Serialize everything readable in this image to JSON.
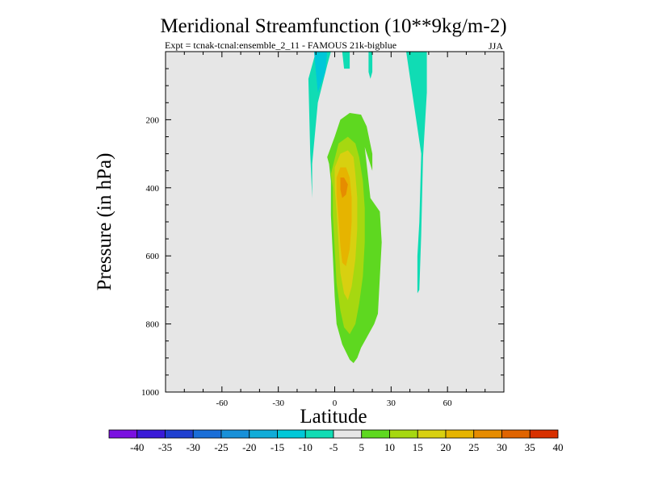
{
  "chart_data": {
    "type": "heatmap",
    "title": "Meridional Streamfunction (10**9kg/m-2)",
    "subtitle_left": "Expt = tcnak-tcnal:ensemble_2_11 - FAMOUS 21k-bigblue",
    "season": "JJA",
    "xlabel": "Latitude",
    "ylabel": "Pressure (in hPa)",
    "xlim": [
      -90,
      90
    ],
    "ylim": [
      1000,
      0
    ],
    "x_ticks": [
      -60,
      -30,
      0,
      30,
      60
    ],
    "x_tick_labels": [
      "-60",
      "-30",
      "0",
      "30",
      "60"
    ],
    "y_ticks": [
      200,
      400,
      600,
      800,
      1000
    ],
    "y_tick_labels": [
      "200",
      "400",
      "600",
      "800",
      "1000"
    ],
    "background_color": "#e6e6e6",
    "colorbar": {
      "labels": [
        "-40",
        "-35",
        "-30",
        "-25",
        "-20",
        "-15",
        "-10",
        "-5",
        "5",
        "10",
        "15",
        "20",
        "25",
        "30",
        "35",
        "40"
      ],
      "colors": [
        "#7a10e0",
        "#3a1ad8",
        "#2040d0",
        "#1a6ed8",
        "#1890d8",
        "#10acd8",
        "#00c8d8",
        "#10dcb4",
        "#e6e6e6",
        "#5ed820",
        "#a6d810",
        "#d8d010",
        "#e6b400",
        "#e68c00",
        "#e06400",
        "#d83000"
      ]
    },
    "contour_regions": [
      {
        "level": "-10",
        "color": "#10dcb4",
        "lat": [
          -10,
          -2,
          -4,
          -9,
          -12,
          -12,
          -13,
          -14
        ],
        "p": [
          0,
          0,
          40,
          150,
          330,
          430,
          300,
          80
        ]
      },
      {
        "level": "-15",
        "color": "#00c8d8",
        "lat": [
          -11,
          -4,
          -5,
          -9
        ],
        "p": [
          0,
          0,
          60,
          120
        ]
      },
      {
        "level": "-10",
        "color": "#10dcb4",
        "lat": [
          -2,
          3,
          1
        ],
        "p": [
          330,
          330,
          410
        ]
      },
      {
        "level": "-10",
        "color": "#10dcb4",
        "lat": [
          4,
          8,
          8,
          5
        ],
        "p": [
          0,
          0,
          50,
          50
        ]
      },
      {
        "level": "-10",
        "color": "#10dcb4",
        "lat": [
          18,
          20,
          20,
          19,
          18
        ],
        "p": [
          0,
          0,
          60,
          80,
          60
        ]
      },
      {
        "level": "-10",
        "color": "#10dcb4",
        "lat": [
          38,
          49,
          49,
          47,
          46,
          45,
          44,
          44,
          45,
          46
        ],
        "p": [
          0,
          0,
          120,
          310,
          540,
          700,
          710,
          600,
          500,
          300
        ]
      },
      {
        "level": "5",
        "color": "#5ed820",
        "lat": [
          -4,
          0,
          3,
          8,
          14,
          17,
          20,
          20,
          16,
          19,
          24,
          25,
          23,
          21,
          17,
          14,
          12,
          10,
          8,
          4,
          1,
          0,
          -1,
          -2,
          -2,
          -3
        ],
        "p": [
          310,
          250,
          200,
          180,
          185,
          220,
          300,
          350,
          280,
          430,
          470,
          560,
          770,
          800,
          840,
          870,
          900,
          915,
          905,
          860,
          800,
          720,
          600,
          480,
          380,
          330
        ]
      },
      {
        "level": "10",
        "color": "#a6d810",
        "lat": [
          -2,
          2,
          7,
          11,
          13,
          15,
          16,
          16,
          15,
          13,
          11,
          8,
          5,
          3,
          1,
          0,
          -1,
          -1
        ],
        "p": [
          360,
          270,
          250,
          270,
          310,
          380,
          460,
          560,
          660,
          740,
          800,
          830,
          810,
          760,
          680,
          580,
          480,
          400
        ]
      },
      {
        "level": "15",
        "color": "#d8d010",
        "lat": [
          0,
          3,
          7,
          10,
          11,
          12,
          12,
          11,
          9,
          7,
          5,
          3,
          2,
          1,
          0
        ],
        "p": [
          340,
          300,
          290,
          310,
          360,
          430,
          520,
          610,
          690,
          730,
          710,
          650,
          560,
          470,
          400
        ]
      },
      {
        "level": "20",
        "color": "#e6b400",
        "lat": [
          1,
          3,
          6,
          8,
          9,
          9,
          8,
          6,
          4,
          3,
          2,
          1
        ],
        "p": [
          370,
          340,
          340,
          370,
          430,
          500,
          580,
          630,
          620,
          570,
          490,
          420
        ]
      },
      {
        "level": "25",
        "color": "#e68c00",
        "lat": [
          3,
          5,
          7,
          6,
          4,
          3
        ],
        "p": [
          370,
          370,
          390,
          420,
          430,
          405
        ]
      }
    ]
  }
}
